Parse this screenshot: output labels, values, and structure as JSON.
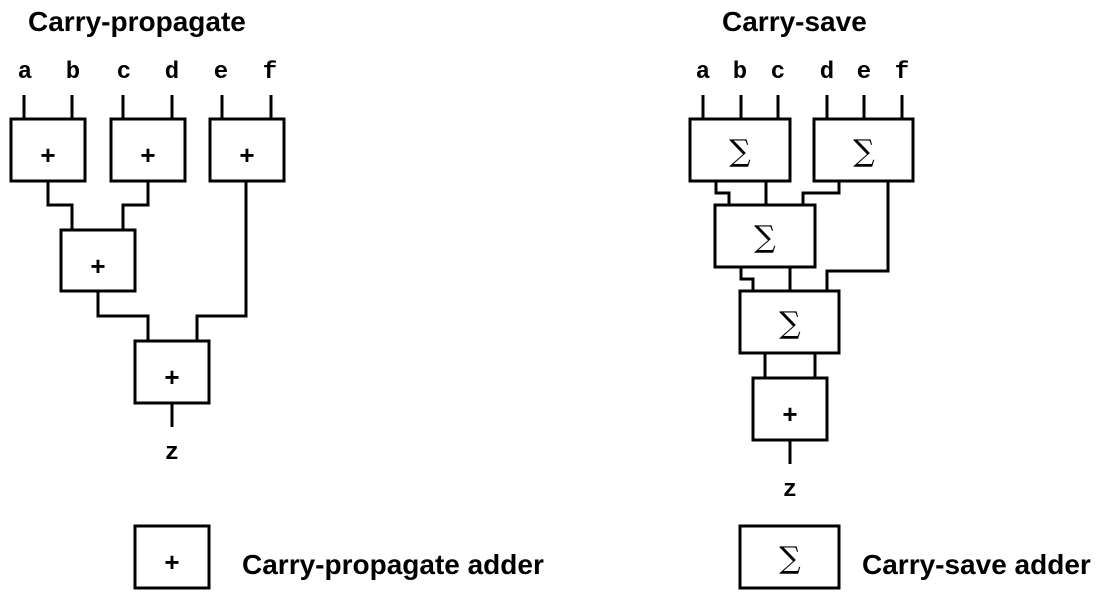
{
  "left": {
    "title": "Carry-propagate",
    "inputs": [
      "a",
      "b",
      "c",
      "d",
      "e",
      "f"
    ],
    "output": "z",
    "adder_symbol": "+"
  },
  "right": {
    "title": "Carry-save",
    "inputs": [
      "a",
      "b",
      "c",
      "d",
      "e",
      "f"
    ],
    "output": "z",
    "adder_symbol": "+",
    "csa_symbol": "∑"
  },
  "legend": {
    "cpa_symbol": "+",
    "cpa_label": "Carry-propagate adder",
    "csa_symbol": "∑",
    "csa_label": "Carry-save adder"
  }
}
